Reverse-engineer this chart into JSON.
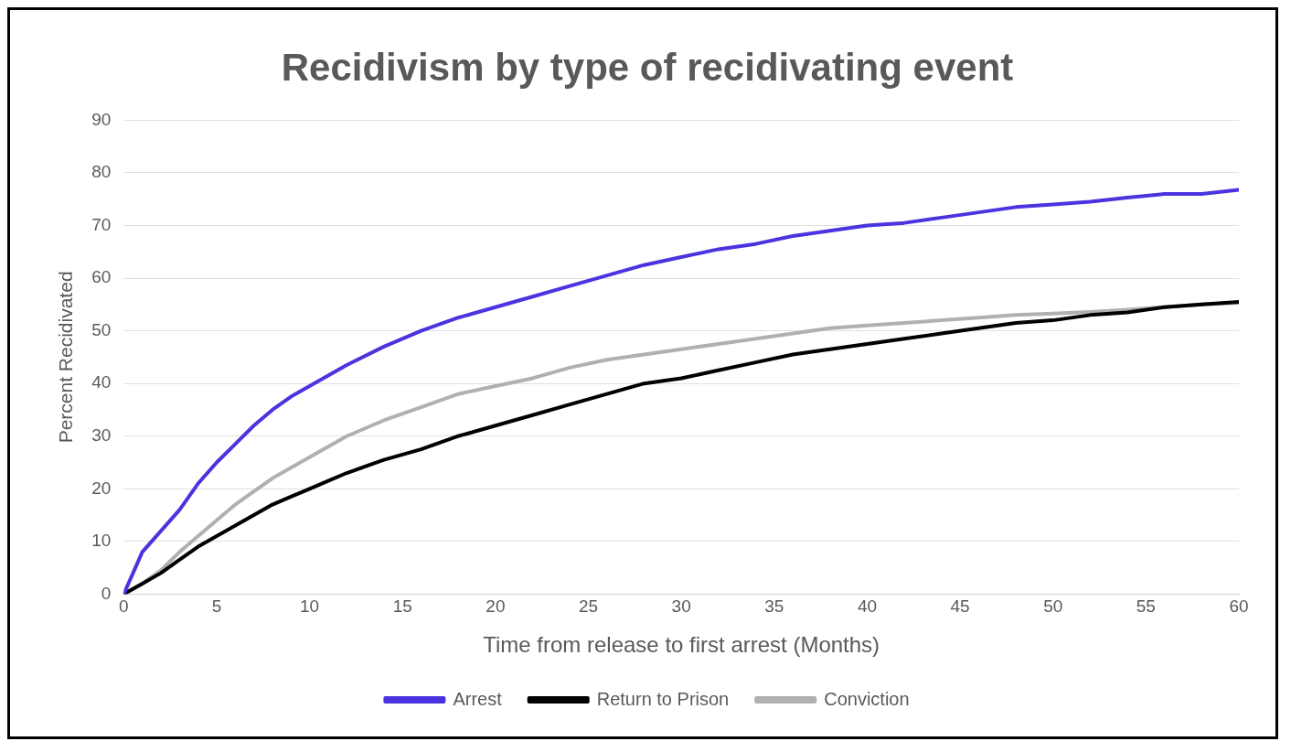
{
  "chart_data": {
    "type": "line",
    "title": "Recidivism by type of recidivating event",
    "xlabel": "Time from release to first arrest (Months)",
    "ylabel": "Percent Recidivated",
    "x": [
      0,
      1,
      2,
      3,
      4,
      5,
      6,
      7,
      8,
      9,
      10,
      11,
      12,
      14,
      16,
      18,
      20,
      22,
      24,
      26,
      28,
      30,
      32,
      34,
      36,
      38,
      40,
      42,
      44,
      46,
      48,
      50,
      52,
      54,
      56,
      58,
      60
    ],
    "series": [
      {
        "name": "Arrest",
        "color": "#4a34e0",
        "values": [
          0,
          8,
          12,
          16,
          21,
          25,
          28.5,
          32,
          35,
          37.5,
          39.5,
          41.5,
          43.5,
          47,
          50,
          52.5,
          54.5,
          56.5,
          58.5,
          60.5,
          62.5,
          64,
          65.5,
          66.5,
          68,
          69,
          70,
          70.5,
          71.5,
          72.5,
          73.5,
          74,
          74.5,
          75.3,
          76,
          76,
          76.8
        ]
      },
      {
        "name": "Return to Prison",
        "color": "#000000",
        "values": [
          0,
          2,
          4,
          6.5,
          9,
          11,
          13,
          15,
          17,
          18.5,
          20,
          21.5,
          23,
          25.5,
          27.5,
          30,
          32,
          34,
          36,
          38,
          40,
          41,
          42.5,
          44,
          45.5,
          46.5,
          47.5,
          48.5,
          49.5,
          50.5,
          51.5,
          52,
          53,
          53.5,
          54.5,
          55,
          55.5
        ]
      },
      {
        "name": "Conviction",
        "color": "#b0b0b0",
        "values": [
          0,
          2,
          4.5,
          8,
          11,
          14,
          17,
          19.5,
          22,
          24,
          26,
          28,
          30,
          33,
          35.5,
          38,
          39.5,
          41,
          43,
          44.5,
          45.5,
          46.5,
          47.5,
          48.5,
          49.5,
          50.5,
          51,
          51.5,
          52,
          52.5,
          53,
          53.3,
          53.6,
          54,
          54.5,
          55,
          55.3
        ]
      }
    ],
    "xlim": [
      0,
      60
    ],
    "xticks": [
      0,
      5,
      10,
      15,
      20,
      25,
      30,
      35,
      40,
      45,
      50,
      55,
      60
    ],
    "ylim": [
      0,
      90
    ],
    "yticks": [
      0,
      10,
      20,
      30,
      40,
      50,
      60,
      70,
      80,
      90
    ],
    "grid": "y",
    "legend": "bottom",
    "marker": "none",
    "line_style": "solid"
  }
}
